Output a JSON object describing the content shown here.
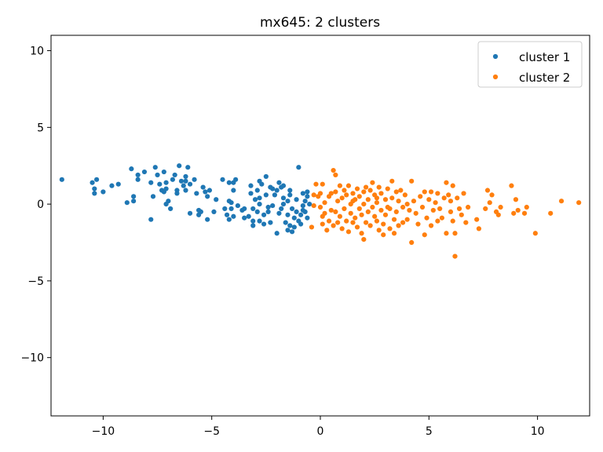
{
  "chart_data": {
    "type": "scatter",
    "title": "mx645: 2 clusters",
    "xlabel": "",
    "ylabel": "",
    "xlim": [
      -12.4,
      12.4
    ],
    "ylim": [
      -13.8,
      11.0
    ],
    "xticks": [
      -10,
      -5,
      0,
      5,
      10
    ],
    "yticks": [
      10,
      5,
      0,
      -5,
      -10
    ],
    "xtick_labels": [
      "−10",
      "−5",
      "0",
      "5",
      "10"
    ],
    "ytick_labels": [
      "10",
      "5",
      "0",
      "−5",
      "−10"
    ],
    "grid": false,
    "legend_position": "top-right",
    "series": [
      {
        "name": "cluster 1",
        "color": "#1f77b4",
        "points": [
          [
            -11.9,
            1.6
          ],
          [
            -10.5,
            1.4
          ],
          [
            -10.3,
            1.6
          ],
          [
            -10.4,
            1.0
          ],
          [
            -10.4,
            0.7
          ],
          [
            -10.0,
            0.8
          ],
          [
            -9.6,
            1.2
          ],
          [
            -9.3,
            1.3
          ],
          [
            -8.9,
            0.1
          ],
          [
            -8.6,
            0.2
          ],
          [
            -8.6,
            0.5
          ],
          [
            -8.7,
            2.3
          ],
          [
            -8.4,
            1.9
          ],
          [
            -8.4,
            1.6
          ],
          [
            -8.1,
            2.1
          ],
          [
            -7.8,
            1.4
          ],
          [
            -7.7,
            0.5
          ],
          [
            -7.8,
            -1.0
          ],
          [
            -7.6,
            2.4
          ],
          [
            -7.5,
            1.9
          ],
          [
            -7.4,
            1.3
          ],
          [
            -7.3,
            0.9
          ],
          [
            -7.2,
            2.1
          ],
          [
            -7.1,
            1.0
          ],
          [
            -7.1,
            1.4
          ],
          [
            -7.2,
            0.8
          ],
          [
            -7.1,
            0.0
          ],
          [
            -7.0,
            0.2
          ],
          [
            -6.8,
            1.6
          ],
          [
            -6.7,
            1.9
          ],
          [
            -6.6,
            0.9
          ],
          [
            -6.6,
            0.7
          ],
          [
            -6.5,
            2.5
          ],
          [
            -6.4,
            1.5
          ],
          [
            -6.3,
            1.2
          ],
          [
            -6.2,
            1.8
          ],
          [
            -6.2,
            1.5
          ],
          [
            -6.1,
            2.4
          ],
          [
            -6.0,
            1.3
          ],
          [
            -6.0,
            -0.6
          ],
          [
            -5.8,
            1.6
          ],
          [
            -5.7,
            0.7
          ],
          [
            -5.6,
            -0.4
          ],
          [
            -5.6,
            -0.7
          ],
          [
            -5.5,
            -0.5
          ],
          [
            -5.4,
            1.1
          ],
          [
            -5.3,
            0.8
          ],
          [
            -5.2,
            0.5
          ],
          [
            -5.2,
            -1.0
          ],
          [
            -5.1,
            0.9
          ],
          [
            -4.9,
            -0.5
          ],
          [
            -4.8,
            0.3
          ],
          [
            -6.9,
            -0.3
          ],
          [
            -6.2,
            0.9
          ],
          [
            -4.5,
            1.6
          ],
          [
            -4.4,
            -0.3
          ],
          [
            -4.3,
            -0.7
          ],
          [
            -4.2,
            1.4
          ],
          [
            -4.2,
            0.2
          ],
          [
            -4.2,
            -1.0
          ],
          [
            -4.1,
            0.1
          ],
          [
            -4.1,
            -0.3
          ],
          [
            -4.0,
            1.4
          ],
          [
            -4.0,
            0.9
          ],
          [
            -4.0,
            -0.8
          ],
          [
            -3.9,
            1.6
          ],
          [
            -3.8,
            -0.1
          ],
          [
            -3.6,
            -0.4
          ],
          [
            -3.5,
            -0.3
          ],
          [
            -3.3,
            -0.8
          ],
          [
            -3.2,
            1.2
          ],
          [
            -3.2,
            0.7
          ],
          [
            -3.1,
            -1.1
          ],
          [
            -3.1,
            -1.4
          ],
          [
            -3.1,
            -0.3
          ],
          [
            -3.0,
            0.3
          ],
          [
            -2.9,
            0.9
          ],
          [
            -2.9,
            -0.5
          ],
          [
            -2.8,
            1.5
          ],
          [
            -2.8,
            -1.1
          ],
          [
            -2.8,
            0.0
          ],
          [
            -2.7,
            1.3
          ],
          [
            -2.6,
            -1.3
          ],
          [
            -2.6,
            -0.7
          ],
          [
            -2.5,
            1.8
          ],
          [
            -2.5,
            0.6
          ],
          [
            -2.4,
            -0.2
          ],
          [
            -2.4,
            -0.5
          ],
          [
            -2.3,
            1.1
          ],
          [
            -2.2,
            -0.1
          ],
          [
            -2.2,
            1.0
          ],
          [
            -2.1,
            0.6
          ],
          [
            -2.0,
            -1.9
          ],
          [
            -2.0,
            0.9
          ],
          [
            -1.9,
            1.4
          ],
          [
            -1.9,
            -0.6
          ],
          [
            -1.8,
            -0.3
          ],
          [
            -1.8,
            1.1
          ],
          [
            -1.7,
            1.2
          ],
          [
            -1.7,
            0.4
          ],
          [
            -1.7,
            0.0
          ],
          [
            -1.6,
            -1.2
          ],
          [
            -1.5,
            -1.7
          ],
          [
            -1.5,
            -0.7
          ],
          [
            -1.5,
            0.2
          ],
          [
            -1.4,
            -1.4
          ],
          [
            -1.4,
            0.6
          ],
          [
            -1.4,
            0.9
          ],
          [
            -1.3,
            -0.3
          ],
          [
            -1.3,
            -1.8
          ],
          [
            -1.2,
            -0.9
          ],
          [
            -1.2,
            -1.5
          ],
          [
            -1.1,
            -0.5
          ],
          [
            -1.1,
            0.3
          ],
          [
            -1.0,
            2.4
          ],
          [
            -1.0,
            -1.1
          ],
          [
            -0.9,
            -0.7
          ],
          [
            -0.9,
            -1.3
          ],
          [
            -0.8,
            0.7
          ],
          [
            -0.8,
            -0.1
          ],
          [
            -0.7,
            0.2
          ],
          [
            -0.7,
            -0.5
          ],
          [
            -0.6,
            0.8
          ],
          [
            -0.6,
            -0.9
          ],
          [
            -0.6,
            0.5
          ],
          [
            -0.5,
            0.0
          ],
          [
            -0.8,
            -0.4
          ],
          [
            -2.8,
            0.4
          ],
          [
            -3.5,
            -0.9
          ],
          [
            -2.3,
            -1.2
          ]
        ]
      },
      {
        "name": "cluster 2",
        "color": "#ff7f0e",
        "points": [
          [
            -0.3,
            0.6
          ],
          [
            -0.3,
            -0.1
          ],
          [
            -0.4,
            -1.5
          ],
          [
            -0.2,
            1.3
          ],
          [
            -0.1,
            0.5
          ],
          [
            0.0,
            -0.2
          ],
          [
            0.0,
            0.7
          ],
          [
            0.1,
            -1.3
          ],
          [
            0.1,
            -0.8
          ],
          [
            0.1,
            1.3
          ],
          [
            0.2,
            0.1
          ],
          [
            0.2,
            -0.6
          ],
          [
            0.3,
            -1.7
          ],
          [
            0.4,
            0.5
          ],
          [
            0.4,
            -1.1
          ],
          [
            0.5,
            -0.4
          ],
          [
            0.5,
            0.7
          ],
          [
            0.6,
            2.2
          ],
          [
            0.6,
            -1.4
          ],
          [
            0.7,
            0.8
          ],
          [
            0.7,
            -0.5
          ],
          [
            0.7,
            1.9
          ],
          [
            0.8,
            -1.2
          ],
          [
            0.8,
            0.2
          ],
          [
            0.9,
            -0.8
          ],
          [
            0.9,
            1.2
          ],
          [
            1.0,
            0.4
          ],
          [
            1.0,
            -1.6
          ],
          [
            1.1,
            -0.3
          ],
          [
            1.1,
            0.9
          ],
          [
            1.2,
            -1.1
          ],
          [
            1.2,
            0.6
          ],
          [
            1.3,
            -1.8
          ],
          [
            1.3,
            1.2
          ],
          [
            1.4,
            0.0
          ],
          [
            1.4,
            -0.6
          ],
          [
            1.5,
            0.7
          ],
          [
            1.5,
            -1.2
          ],
          [
            1.6,
            0.3
          ],
          [
            1.6,
            -0.9
          ],
          [
            1.7,
            -1.5
          ],
          [
            1.7,
            1.0
          ],
          [
            1.8,
            -0.3
          ],
          [
            1.8,
            0.5
          ],
          [
            1.9,
            -1.9
          ],
          [
            1.9,
            -0.7
          ],
          [
            2.0,
            0.8
          ],
          [
            2.0,
            -2.3
          ],
          [
            2.1,
            1.1
          ],
          [
            2.1,
            -1.2
          ],
          [
            2.2,
            0.3
          ],
          [
            2.2,
            -0.5
          ],
          [
            2.3,
            -1.4
          ],
          [
            2.3,
            0.9
          ],
          [
            2.4,
            -0.2
          ],
          [
            2.4,
            1.4
          ],
          [
            2.5,
            -0.8
          ],
          [
            2.5,
            0.6
          ],
          [
            2.6,
            -1.1
          ],
          [
            2.6,
            0.1
          ],
          [
            2.7,
            -1.7
          ],
          [
            2.7,
            1.1
          ],
          [
            2.8,
            -0.4
          ],
          [
            2.8,
            0.7
          ],
          [
            2.9,
            -2.0
          ],
          [
            2.9,
            -1.3
          ],
          [
            3.0,
            0.3
          ],
          [
            3.0,
            -0.7
          ],
          [
            3.1,
            1.0
          ],
          [
            3.2,
            -0.3
          ],
          [
            3.2,
            -1.6
          ],
          [
            3.3,
            1.5
          ],
          [
            3.3,
            0.4
          ],
          [
            3.4,
            -1.0
          ],
          [
            3.4,
            -1.9
          ],
          [
            3.5,
            0.8
          ],
          [
            3.5,
            -0.5
          ],
          [
            3.6,
            0.2
          ],
          [
            3.6,
            -1.4
          ],
          [
            3.7,
            0.9
          ],
          [
            3.8,
            -0.2
          ],
          [
            3.8,
            -1.2
          ],
          [
            3.9,
            0.6
          ],
          [
            4.0,
            -1.0
          ],
          [
            4.0,
            0.0
          ],
          [
            4.1,
            -0.4
          ],
          [
            4.2,
            -2.5
          ],
          [
            4.2,
            1.5
          ],
          [
            4.3,
            0.2
          ],
          [
            4.4,
            -0.6
          ],
          [
            4.5,
            -1.3
          ],
          [
            4.6,
            0.5
          ],
          [
            4.7,
            -0.2
          ],
          [
            4.8,
            -2.0
          ],
          [
            4.8,
            0.8
          ],
          [
            4.9,
            -0.9
          ],
          [
            5.0,
            0.3
          ],
          [
            5.1,
            -1.4
          ],
          [
            5.1,
            0.8
          ],
          [
            5.2,
            -0.4
          ],
          [
            5.3,
            0.1
          ],
          [
            5.4,
            0.7
          ],
          [
            5.4,
            -1.1
          ],
          [
            5.5,
            -0.3
          ],
          [
            5.6,
            -0.9
          ],
          [
            5.7,
            0.4
          ],
          [
            5.8,
            -1.9
          ],
          [
            5.8,
            1.4
          ],
          [
            5.9,
            0.6
          ],
          [
            6.0,
            -0.5
          ],
          [
            6.0,
            0.2
          ],
          [
            6.1,
            1.2
          ],
          [
            6.1,
            -1.1
          ],
          [
            6.2,
            -3.4
          ],
          [
            6.2,
            -1.9
          ],
          [
            6.3,
            0.4
          ],
          [
            6.4,
            -0.3
          ],
          [
            6.5,
            -0.7
          ],
          [
            6.6,
            0.7
          ],
          [
            6.7,
            -1.2
          ],
          [
            6.8,
            -0.2
          ],
          [
            7.2,
            -1.0
          ],
          [
            7.3,
            -1.6
          ],
          [
            7.6,
            -0.3
          ],
          [
            7.7,
            0.9
          ],
          [
            7.8,
            0.1
          ],
          [
            7.9,
            0.6
          ],
          [
            8.1,
            -0.5
          ],
          [
            8.2,
            -0.7
          ],
          [
            8.3,
            -0.2
          ],
          [
            8.8,
            1.2
          ],
          [
            8.9,
            -0.6
          ],
          [
            9.0,
            0.3
          ],
          [
            9.1,
            -0.4
          ],
          [
            9.4,
            -0.6
          ],
          [
            9.5,
            -0.2
          ],
          [
            9.9,
            -1.9
          ],
          [
            10.6,
            -0.6
          ],
          [
            11.1,
            0.2
          ],
          [
            11.9,
            0.1
          ],
          [
            1.5,
            0.2
          ],
          [
            2.0,
            0.0
          ],
          [
            2.6,
            0.4
          ],
          [
            3.1,
            -0.2
          ]
        ]
      }
    ]
  }
}
